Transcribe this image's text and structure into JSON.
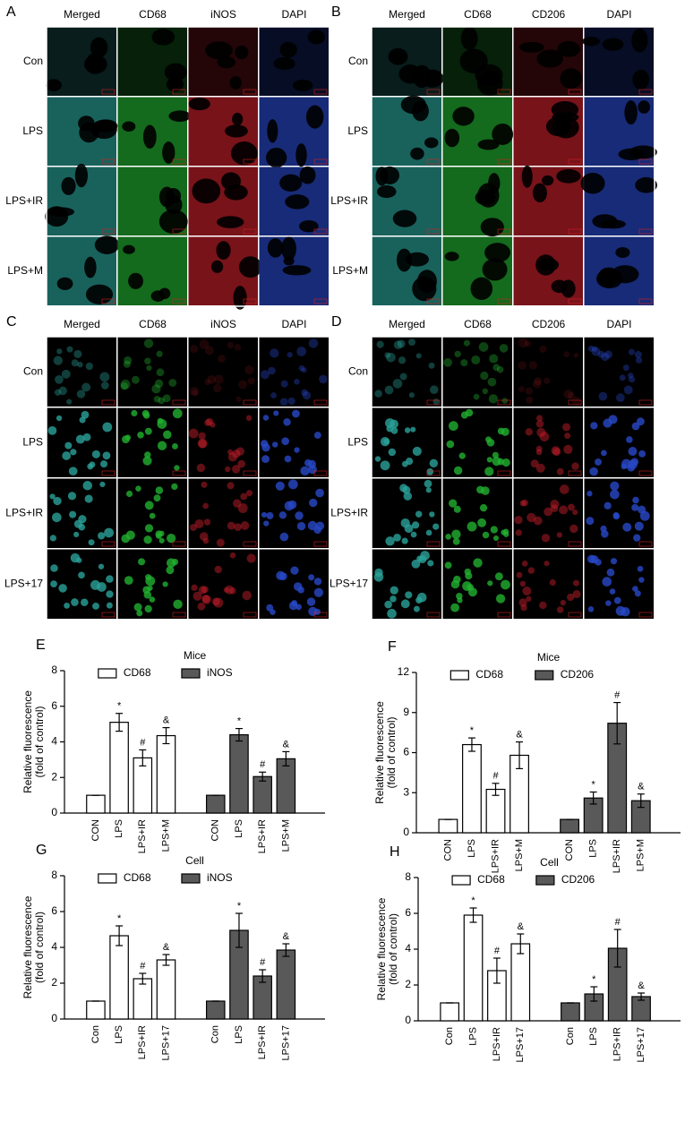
{
  "panels": [
    {
      "label": "A",
      "columns": [
        "Merged",
        "CD68",
        "iNOS",
        "DAPI"
      ],
      "rows": [
        "Con",
        "LPS",
        "LPS+IR",
        "LPS+M"
      ]
    },
    {
      "label": "B",
      "columns": [
        "Merged",
        "CD68",
        "CD206",
        "DAPI"
      ],
      "rows": [
        "Con",
        "LPS",
        "LPS+IR",
        "LPS+M"
      ]
    },
    {
      "label": "C",
      "columns": [
        "Merged",
        "CD68",
        "iNOS",
        "DAPI"
      ],
      "rows": [
        "Con",
        "LPS",
        "LPS+IR",
        "LPS+17"
      ]
    },
    {
      "label": "D",
      "columns": [
        "Merged",
        "CD68",
        "CD206",
        "DAPI"
      ],
      "rows": [
        "Con",
        "LPS",
        "LPS+IR",
        "LPS+17"
      ]
    }
  ],
  "chart_data": [
    {
      "type": "bar",
      "label": "E",
      "title": "Mice",
      "ylabel": [
        "Relative fluorescence",
        "(fold of control)"
      ],
      "categories": [
        "CON",
        "LPS",
        "LPS+IR",
        "LPS+M"
      ],
      "ylim": [
        0,
        8
      ],
      "yticks": [
        0,
        2,
        4,
        6,
        8
      ],
      "series": [
        {
          "name": "CD68",
          "color": "#ffffff",
          "values": [
            1,
            5.1,
            3.1,
            4.35
          ],
          "errors": [
            0,
            0.5,
            0.45,
            0.45
          ],
          "markers": [
            null,
            "*",
            "#",
            "&"
          ]
        },
        {
          "name": "iNOS",
          "color": "#595959",
          "values": [
            1,
            4.4,
            2.05,
            3.05
          ],
          "errors": [
            0,
            0.35,
            0.25,
            0.4
          ],
          "markers": [
            null,
            "*",
            "#",
            "&"
          ]
        }
      ]
    },
    {
      "type": "bar",
      "label": "F",
      "title": "Mice",
      "ylabel": [
        "Relative fluorescence",
        "(fold of control)"
      ],
      "categories": [
        "CON",
        "LPS",
        "LPS+IR",
        "LPS+M"
      ],
      "ylim": [
        0,
        12
      ],
      "yticks": [
        0,
        3,
        6,
        9,
        12
      ],
      "series": [
        {
          "name": "CD68",
          "color": "#ffffff",
          "values": [
            1,
            6.6,
            3.25,
            5.8
          ],
          "errors": [
            0,
            0.5,
            0.45,
            1.0
          ],
          "markers": [
            null,
            "*",
            "#",
            "&"
          ]
        },
        {
          "name": "CD206",
          "color": "#595959",
          "values": [
            1,
            2.6,
            8.2,
            2.4
          ],
          "errors": [
            0,
            0.45,
            1.55,
            0.5
          ],
          "markers": [
            null,
            "*",
            "#",
            "&"
          ]
        }
      ]
    },
    {
      "type": "bar",
      "label": "G",
      "title": "Cell",
      "ylabel": [
        "Relative fluorescence",
        "(fold of control)"
      ],
      "categories": [
        "Con",
        "LPS",
        "LPS+IR",
        "LPS+17"
      ],
      "ylim": [
        0,
        8
      ],
      "yticks": [
        0,
        2,
        4,
        6,
        8
      ],
      "series": [
        {
          "name": "CD68",
          "color": "#ffffff",
          "values": [
            1,
            4.65,
            2.25,
            3.3
          ],
          "errors": [
            0,
            0.55,
            0.3,
            0.3
          ],
          "markers": [
            null,
            "*",
            "#",
            "&"
          ]
        },
        {
          "name": "iNOS",
          "color": "#595959",
          "values": [
            1,
            4.95,
            2.4,
            3.85
          ],
          "errors": [
            0,
            0.95,
            0.35,
            0.35
          ],
          "markers": [
            null,
            "*",
            "#",
            "&"
          ]
        }
      ]
    },
    {
      "type": "bar",
      "label": "H",
      "title": "Cell",
      "ylabel": [
        "Relative fluorescence",
        "(fold of control)"
      ],
      "categories": [
        "Con",
        "LPS",
        "LPS+IR",
        "LPS+17"
      ],
      "ylim": [
        0,
        8
      ],
      "yticks": [
        0,
        2,
        4,
        6,
        8
      ],
      "series": [
        {
          "name": "CD68",
          "color": "#ffffff",
          "values": [
            1,
            5.9,
            2.8,
            4.3
          ],
          "errors": [
            0,
            0.4,
            0.7,
            0.55
          ],
          "markers": [
            null,
            "*",
            "#",
            "&"
          ]
        },
        {
          "name": "CD206",
          "color": "#595959",
          "values": [
            1,
            1.5,
            4.05,
            1.35
          ],
          "errors": [
            0,
            0.4,
            1.05,
            0.2
          ],
          "markers": [
            null,
            "*",
            "#",
            "&"
          ]
        }
      ]
    }
  ]
}
